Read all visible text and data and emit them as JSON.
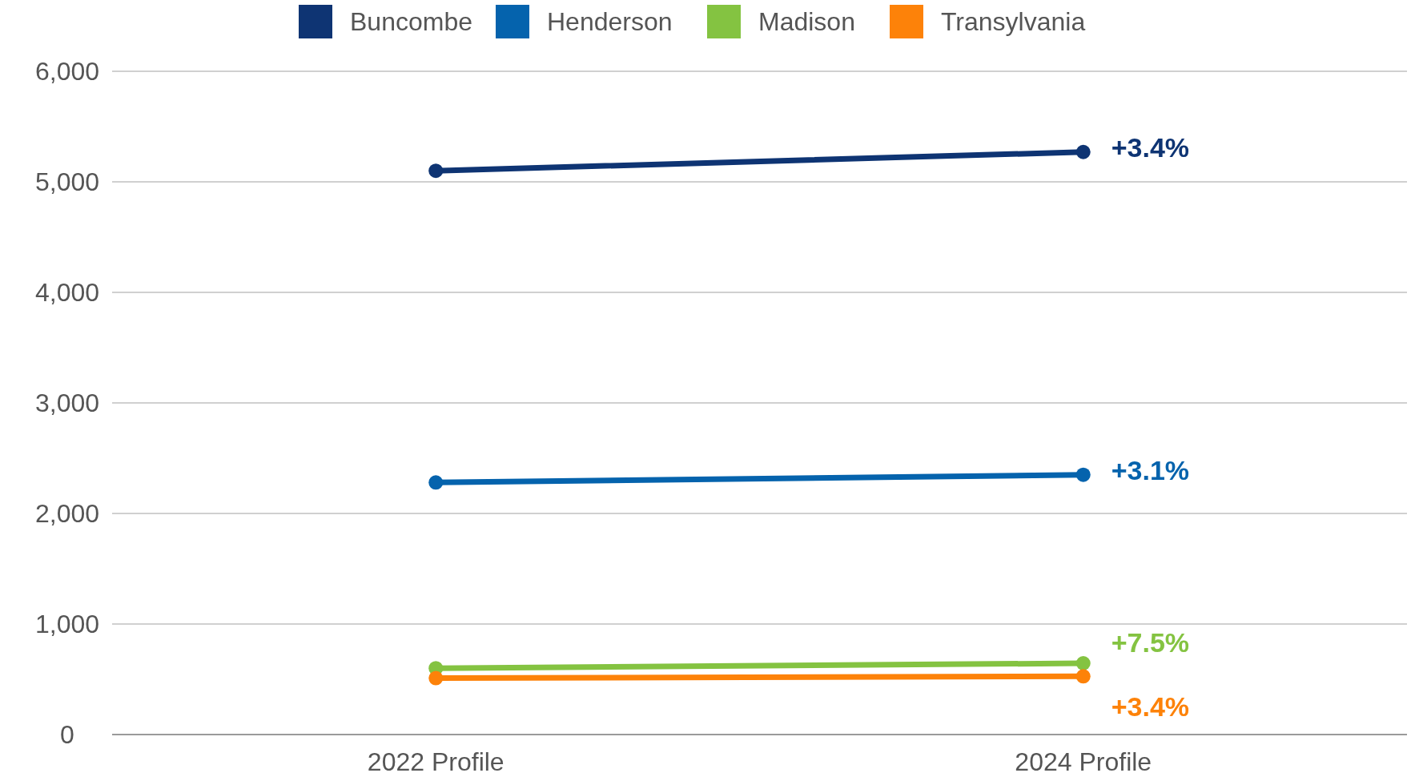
{
  "chart_data": {
    "type": "line",
    "categories": [
      "2022 Profile",
      "2024 Profile"
    ],
    "series": [
      {
        "name": "Buncombe",
        "color": "#0e3473",
        "values": [
          5100,
          5270
        ]
      },
      {
        "name": "Henderson",
        "color": "#0563ad",
        "values": [
          2280,
          2350
        ]
      },
      {
        "name": "Madison",
        "color": "#84c341",
        "values": [
          600,
          645
        ]
      },
      {
        "name": "Transylvania",
        "color": "#fd8209",
        "values": [
          510,
          527
        ]
      }
    ],
    "annotations": [
      {
        "text": "+3.4%",
        "x": "2024 Profile",
        "y": 5270
      },
      {
        "text": "+3.1%",
        "x": "2024 Profile",
        "y": 2350
      },
      {
        "text": "+7.5%",
        "x": "2024 Profile",
        "y": 645
      },
      {
        "text": "+3.4%",
        "x": "2024 Profile",
        "y": 527
      }
    ],
    "ylim": [
      0,
      6000
    ],
    "yticks": [
      0,
      {
        "value": 1000,
        "label": "1,000"
      },
      {
        "value": 2000,
        "label": "2,000"
      },
      {
        "value": 3000,
        "label": "3,000"
      },
      {
        "value": 4000,
        "label": "4,000"
      },
      {
        "value": 5000,
        "label": "5,000"
      },
      {
        "value": 6000,
        "label": "6,000"
      }
    ],
    "grid": "y",
    "legend": "top",
    "marker": "circle",
    "line_style": "solid"
  }
}
